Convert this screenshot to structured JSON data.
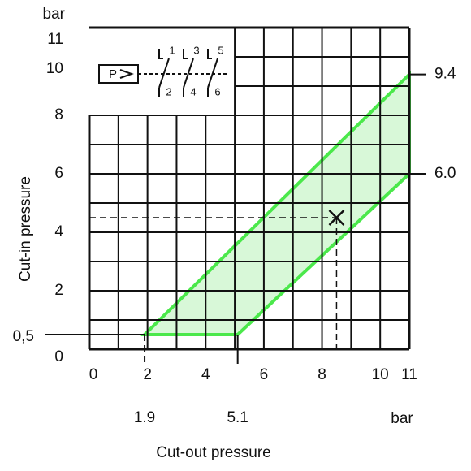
{
  "chart_data": {
    "type": "band",
    "x_label": "Cut-out pressure",
    "y_label": "Cut-in pressure",
    "x_unit": "bar",
    "y_unit": "bar",
    "xlim": [
      0,
      11
    ],
    "ylim": [
      0,
      11
    ],
    "xticks": [
      0,
      2,
      4,
      6,
      8,
      10,
      11
    ],
    "yticks": [
      0,
      2,
      4,
      6,
      8,
      10,
      11
    ],
    "xgrid": [
      0,
      1,
      2,
      3,
      4,
      5,
      6,
      7,
      8,
      9,
      10,
      11
    ],
    "ygrid": [
      0,
      1,
      2,
      3,
      4,
      5,
      6,
      7,
      8,
      9,
      10,
      11
    ],
    "band": {
      "x": [
        1.9,
        5.1,
        11,
        11
      ],
      "y": [
        0.5,
        0.5,
        6.0,
        9.4
      ],
      "color": "#4be84b",
      "fill": "#d8f8d8"
    },
    "y_markers": [
      {
        "value": 0.5,
        "label": "0,5"
      }
    ],
    "x_markers": [
      1.9,
      5.1
    ],
    "y2_markers": [
      9.4,
      {
        "value": 6.0,
        "label": "6.0"
      }
    ],
    "example_point": {
      "x": 8.5,
      "y": 4.5
    },
    "symbol": {
      "label": "P",
      "contacts_top": [
        "1",
        "3",
        "5"
      ],
      "contacts_bottom": [
        "2",
        "4",
        "6"
      ]
    }
  }
}
